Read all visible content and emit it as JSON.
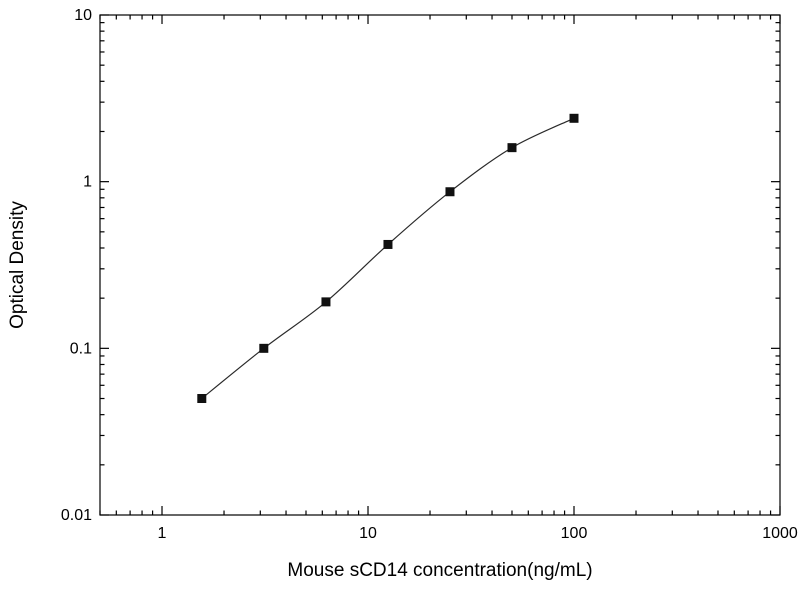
{
  "chart_data": {
    "type": "scatter",
    "title": "",
    "xlabel": "Mouse sCD14 concentration(ng/mL)",
    "ylabel": "Optical Density",
    "xscale": "log",
    "yscale": "log",
    "xlim": [
      0.5,
      1000
    ],
    "ylim": [
      0.01,
      10
    ],
    "x_tick_labels": [
      "1",
      "10",
      "100",
      "1000"
    ],
    "x_tick_values": [
      1,
      10,
      100,
      1000
    ],
    "y_tick_labels": [
      "0.01",
      "0.1",
      "1",
      "10"
    ],
    "y_tick_values": [
      0.01,
      0.1,
      1,
      10
    ],
    "grid": false,
    "legend": "none",
    "marker": "square",
    "x": [
      1.56,
      3.12,
      6.25,
      12.5,
      25,
      50,
      100
    ],
    "y": [
      0.05,
      0.1,
      0.19,
      0.42,
      0.87,
      1.6,
      2.4
    ]
  },
  "colors": {
    "background": "#ffffff",
    "frame": "#000000",
    "marker": "#111111",
    "line": "#2a2a2a",
    "text": "#000000"
  }
}
